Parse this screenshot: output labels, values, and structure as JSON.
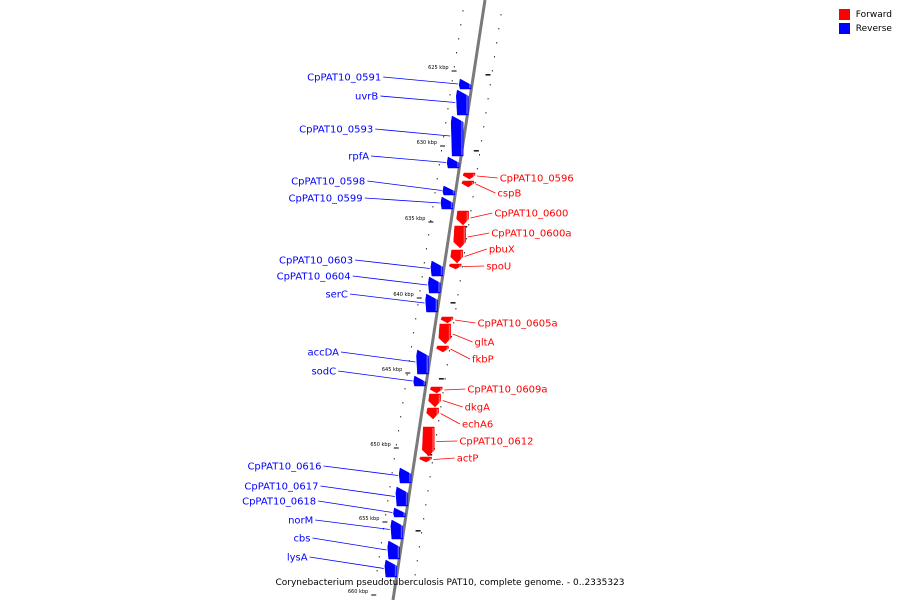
{
  "colors": {
    "forward": "#ff0000",
    "reverse": "#0000ff",
    "backbone": "#7a7a7a"
  },
  "legend": [
    {
      "label": "Forward",
      "color": "#ff0000"
    },
    {
      "label": "Reverse",
      "color": "#0000ff"
    }
  ],
  "footer": "Corynebacterium pseudotuberculosis PAT10, complete genome. - 0..2335323",
  "ticks": [
    "625 kbp",
    "630 kbp",
    "635 kbp",
    "640 kbp",
    "645 kbp",
    "650 kbp",
    "655 kbp",
    "660 kbp"
  ],
  "genes_reverse": [
    "CpPAT10_0591",
    "uvrB",
    "CpPAT10_0593",
    "rpfA",
    "CpPAT10_0598",
    "CpPAT10_0599",
    "CpPAT10_0603",
    "CpPAT10_0604",
    "serC",
    "accDA",
    "sodC",
    "CpPAT10_0616",
    "CpPAT10_0617",
    "CpPAT10_0618",
    "norM",
    "cbs",
    "lysA"
  ],
  "genes_forward": [
    "CpPAT10_0596",
    "cspB",
    "CpPAT10_0600",
    "CpPAT10_0600a",
    "pbuX",
    "spoU",
    "CpPAT10_0605a",
    "gltA",
    "fkbP",
    "CpPAT10_0609a",
    "dkgA",
    "echA6",
    "CpPAT10_0612",
    "actP"
  ]
}
